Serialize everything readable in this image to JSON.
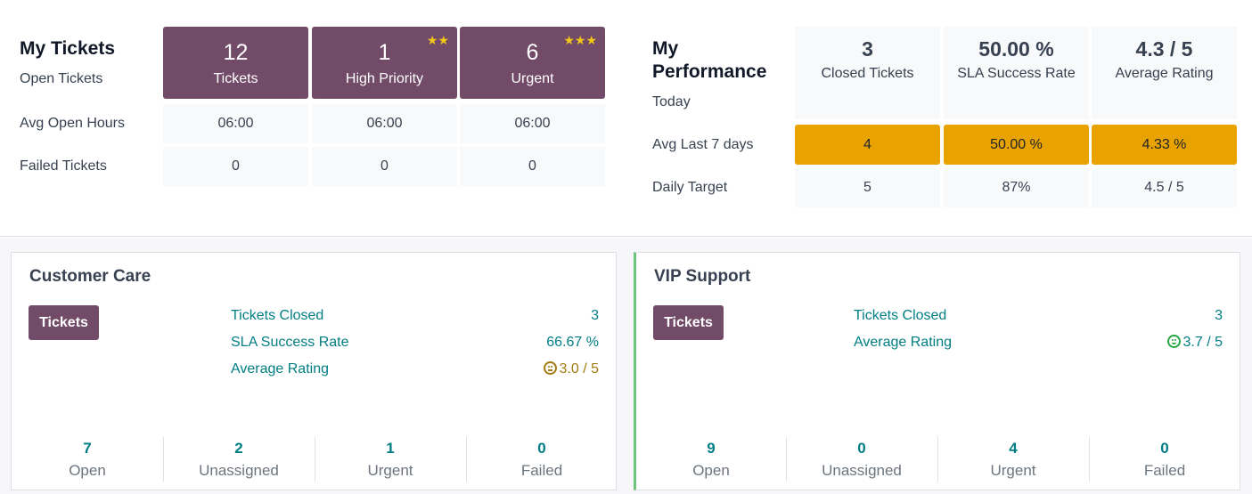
{
  "my_tickets": {
    "title": "My Tickets",
    "row_labels": [
      "Open Tickets",
      "Avg Open Hours",
      "Failed Tickets"
    ],
    "tiles": [
      {
        "value": "12",
        "label": "Tickets",
        "stars": ""
      },
      {
        "value": "1",
        "label": "High Priority",
        "stars": "★★"
      },
      {
        "value": "6",
        "label": "Urgent",
        "stars": "★★★"
      }
    ],
    "avg_open_hours": [
      "06:00",
      "06:00",
      "06:00"
    ],
    "failed_tickets": [
      "0",
      "0",
      "0"
    ]
  },
  "my_performance": {
    "title_line1": "My",
    "title_line2": "Performance",
    "row_labels": [
      "Today",
      "Avg Last 7 days",
      "Daily Target"
    ],
    "today": [
      {
        "value": "3",
        "label": "Closed Tickets"
      },
      {
        "value": "50.00 %",
        "label": "SLA Success Rate"
      },
      {
        "value": "4.3 / 5",
        "label": "Average Rating"
      }
    ],
    "avg_last_7_days": [
      "4",
      "50.00 %",
      "4.33 %"
    ],
    "daily_target": [
      "5",
      "87%",
      "4.5 / 5"
    ]
  },
  "teams": [
    {
      "name": "Customer Care",
      "button": "Tickets",
      "stats": [
        {
          "label": "Tickets Closed",
          "value": "3",
          "icon": ""
        },
        {
          "label": "SLA Success Rate",
          "value": "66.67 %",
          "icon": ""
        },
        {
          "label": "Average Rating",
          "value": "3.0 / 5",
          "icon": "neutral-face-icon"
        }
      ],
      "footer": [
        {
          "value": "7",
          "label": "Open"
        },
        {
          "value": "2",
          "label": "Unassigned"
        },
        {
          "value": "1",
          "label": "Urgent"
        },
        {
          "value": "0",
          "label": "Failed"
        }
      ]
    },
    {
      "name": "VIP Support",
      "button": "Tickets",
      "stats": [
        {
          "label": "Tickets Closed",
          "value": "3",
          "icon": ""
        },
        {
          "label": "Average Rating",
          "value": "3.7 / 5",
          "icon": "happy-face-icon"
        }
      ],
      "footer": [
        {
          "value": "9",
          "label": "Open"
        },
        {
          "value": "0",
          "label": "Unassigned"
        },
        {
          "value": "4",
          "label": "Urgent"
        },
        {
          "value": "0",
          "label": "Failed"
        }
      ]
    }
  ],
  "colors": {
    "primary": "#714b67",
    "accent_orange": "#e8a202",
    "link_teal": "#017e84",
    "star_yellow": "#f3c716",
    "vip_border_green": "#6ec47b"
  }
}
